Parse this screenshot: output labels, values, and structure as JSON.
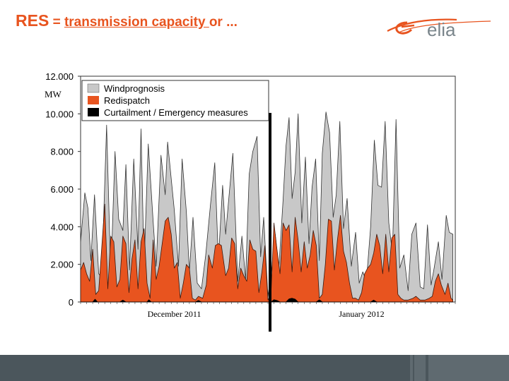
{
  "header": {
    "title_prefix": "RES",
    "title_eq": " = ",
    "title_link": "transmission capacity ",
    "title_suffix": "or ..."
  },
  "logo": {
    "text": "elia",
    "icon": "elia-logo-swoosh",
    "color": "#e8541f"
  },
  "chart_data": {
    "type": "area",
    "title": "",
    "ylabel": "MW",
    "xlabel": "",
    "ylim": [
      0,
      12000
    ],
    "yticks": [
      "0",
      "2.000",
      "4.000",
      "6.000",
      "8.000",
      "10.000",
      "12.000"
    ],
    "ytick_values": [
      0,
      2000,
      4000,
      6000,
      8000,
      10000,
      12000
    ],
    "x_groups": [
      {
        "label": "December 2011",
        "days": 31
      },
      {
        "label": "January 2012",
        "days": 31
      }
    ],
    "divider_day": 31,
    "legend": [
      {
        "label": "Windprognosis",
        "color": "#c8c8c8"
      },
      {
        "label": "Redispatch",
        "color": "#e8541f"
      },
      {
        "label": "Curtailment / Emergency measures",
        "color": "#000000"
      }
    ],
    "series": [
      {
        "name": "Windprognosis",
        "color": "#c8c8c8",
        "points": [
          [
            0,
            3200
          ],
          [
            0.7,
            5800
          ],
          [
            1.2,
            5000
          ],
          [
            1.7,
            2200
          ],
          [
            2.3,
            5700
          ],
          [
            3,
            1500
          ],
          [
            3.5,
            1300
          ],
          [
            4.3,
            9400
          ],
          [
            5,
            1400
          ],
          [
            5.7,
            8000
          ],
          [
            6.3,
            4400
          ],
          [
            7,
            3800
          ],
          [
            7.5,
            7300
          ],
          [
            8.1,
            1700
          ],
          [
            8.8,
            7600
          ],
          [
            9.5,
            2800
          ],
          [
            10,
            9200
          ],
          [
            10.5,
            1900
          ],
          [
            11.2,
            8400
          ],
          [
            12,
            4300
          ],
          [
            12.5,
            1900
          ],
          [
            13.3,
            7800
          ],
          [
            14,
            5700
          ],
          [
            14.4,
            8500
          ],
          [
            15.5,
            4900
          ],
          [
            16.2,
            1900
          ],
          [
            16.8,
            7600
          ],
          [
            17.5,
            4800
          ],
          [
            18,
            1600
          ],
          [
            18.6,
            4500
          ],
          [
            19.3,
            1000
          ],
          [
            20,
            700
          ],
          [
            20.7,
            2500
          ],
          [
            21.5,
            5200
          ],
          [
            22.2,
            7400
          ],
          [
            22.8,
            2200
          ],
          [
            23.5,
            6200
          ],
          [
            24,
            3600
          ],
          [
            24.5,
            5400
          ],
          [
            25.2,
            7900
          ],
          [
            26,
            1100
          ],
          [
            26.7,
            3500
          ],
          [
            27.3,
            1200
          ],
          [
            27.9,
            6800
          ],
          [
            28.5,
            8000
          ],
          [
            29.2,
            8800
          ],
          [
            29.8,
            2400
          ],
          [
            30.3,
            4500
          ],
          [
            31,
            300
          ],
          [
            31.6,
            1700
          ],
          [
            32.2,
            3600
          ],
          [
            32.8,
            1800
          ],
          [
            33.5,
            5400
          ],
          [
            34,
            8300
          ],
          [
            34.5,
            9800
          ],
          [
            35,
            5500
          ],
          [
            35.5,
            6900
          ],
          [
            36,
            10000
          ],
          [
            36.6,
            4200
          ],
          [
            37.2,
            7700
          ],
          [
            37.8,
            3100
          ],
          [
            38.3,
            6100
          ],
          [
            38.9,
            7600
          ],
          [
            39.5,
            2200
          ],
          [
            40,
            7900
          ],
          [
            40.6,
            10100
          ],
          [
            41.2,
            9000
          ],
          [
            41.8,
            4500
          ],
          [
            42.3,
            5700
          ],
          [
            42.9,
            9600
          ],
          [
            43.5,
            3900
          ],
          [
            44.1,
            5500
          ],
          [
            44.8,
            1900
          ],
          [
            45.5,
            3700
          ],
          [
            46.1,
            1000
          ],
          [
            46.7,
            1600
          ],
          [
            47.3,
            1100
          ],
          [
            48,
            4000
          ],
          [
            48.6,
            8600
          ],
          [
            49.2,
            6200
          ],
          [
            49.8,
            6100
          ],
          [
            50.4,
            9600
          ],
          [
            51,
            4200
          ],
          [
            51.6,
            2600
          ],
          [
            52.2,
            9700
          ],
          [
            52.8,
            1800
          ],
          [
            53.5,
            2500
          ],
          [
            54.2,
            600
          ],
          [
            54.8,
            3600
          ],
          [
            55.5,
            4200
          ],
          [
            56.2,
            800
          ],
          [
            56.8,
            700
          ],
          [
            57.4,
            4100
          ],
          [
            58,
            900
          ],
          [
            58.5,
            1800
          ],
          [
            59.2,
            3200
          ],
          [
            59.8,
            1200
          ],
          [
            60.5,
            4600
          ],
          [
            61,
            3700
          ],
          [
            61.6,
            3600
          ]
        ]
      },
      {
        "name": "Redispatch",
        "color": "#e8541f",
        "points": [
          [
            0,
            1700
          ],
          [
            0.5,
            2100
          ],
          [
            1,
            1500
          ],
          [
            1.5,
            1100
          ],
          [
            2,
            2800
          ],
          [
            2.5,
            400
          ],
          [
            3,
            600
          ],
          [
            3.5,
            2900
          ],
          [
            4,
            5200
          ],
          [
            4.5,
            700
          ],
          [
            5,
            3500
          ],
          [
            5.5,
            3200
          ],
          [
            6,
            800
          ],
          [
            6.5,
            1200
          ],
          [
            7,
            3500
          ],
          [
            7.5,
            3100
          ],
          [
            8,
            500
          ],
          [
            8.5,
            2300
          ],
          [
            9,
            3300
          ],
          [
            9.5,
            700
          ],
          [
            10,
            3200
          ],
          [
            10.5,
            3900
          ],
          [
            11,
            1000
          ],
          [
            11.5,
            200
          ],
          [
            12,
            3300
          ],
          [
            12.5,
            1200
          ],
          [
            13,
            1900
          ],
          [
            13.5,
            3100
          ],
          [
            14,
            4300
          ],
          [
            14.5,
            4500
          ],
          [
            15,
            3600
          ],
          [
            15.5,
            1800
          ],
          [
            16,
            2100
          ],
          [
            16.5,
            200
          ],
          [
            17,
            1000
          ],
          [
            17.5,
            2000
          ],
          [
            18,
            1800
          ],
          [
            18.5,
            200
          ],
          [
            19,
            100
          ],
          [
            19.5,
            300
          ],
          [
            20.2,
            200
          ],
          [
            20.8,
            900
          ],
          [
            21.2,
            2500
          ],
          [
            21.8,
            1800
          ],
          [
            22.3,
            3000
          ],
          [
            22.8,
            3100
          ],
          [
            23.3,
            3000
          ],
          [
            24,
            1400
          ],
          [
            24.5,
            1800
          ],
          [
            25,
            3400
          ],
          [
            25.5,
            3100
          ],
          [
            26,
            700
          ],
          [
            26.5,
            1800
          ],
          [
            27,
            1400
          ],
          [
            27.5,
            1100
          ],
          [
            28,
            3300
          ],
          [
            28.5,
            2800
          ],
          [
            29,
            2700
          ],
          [
            29.5,
            500
          ],
          [
            30,
            1600
          ],
          [
            30.5,
            3000
          ],
          [
            31,
            100
          ],
          [
            31.5,
            400
          ],
          [
            32,
            4200
          ],
          [
            32.5,
            2800
          ],
          [
            33,
            1500
          ],
          [
            33.5,
            4200
          ],
          [
            34,
            3800
          ],
          [
            34.5,
            4100
          ],
          [
            35,
            1600
          ],
          [
            35.5,
            4500
          ],
          [
            36,
            3300
          ],
          [
            36.5,
            1600
          ],
          [
            37,
            3200
          ],
          [
            37.5,
            1800
          ],
          [
            38,
            2500
          ],
          [
            38.5,
            3800
          ],
          [
            39,
            3000
          ],
          [
            39.5,
            200
          ],
          [
            40,
            400
          ],
          [
            40.5,
            2000
          ],
          [
            41,
            4400
          ],
          [
            41.5,
            4300
          ],
          [
            42,
            1700
          ],
          [
            42.5,
            3300
          ],
          [
            43,
            4600
          ],
          [
            43.5,
            2700
          ],
          [
            44,
            2100
          ],
          [
            44.5,
            1000
          ],
          [
            45,
            200
          ],
          [
            45.5,
            200
          ],
          [
            46,
            100
          ],
          [
            46.5,
            500
          ],
          [
            47,
            1500
          ],
          [
            47.5,
            1800
          ],
          [
            48,
            2000
          ],
          [
            48.5,
            2600
          ],
          [
            49,
            3600
          ],
          [
            49.5,
            3000
          ],
          [
            50,
            1500
          ],
          [
            50.5,
            3600
          ],
          [
            51,
            1600
          ],
          [
            51.5,
            3400
          ],
          [
            52,
            3600
          ],
          [
            52.5,
            400
          ],
          [
            53,
            200
          ],
          [
            53.5,
            100
          ],
          [
            54.2,
            100
          ],
          [
            55,
            200
          ],
          [
            55.5,
            300
          ],
          [
            56.2,
            100
          ],
          [
            57,
            100
          ],
          [
            57.7,
            200
          ],
          [
            58.2,
            300
          ],
          [
            58.7,
            1100
          ],
          [
            59.2,
            1500
          ],
          [
            59.7,
            900
          ],
          [
            60.3,
            400
          ],
          [
            60.8,
            1000
          ],
          [
            61.3,
            200
          ],
          [
            61.6,
            100
          ]
        ]
      },
      {
        "name": "Curtailment / Emergency measures",
        "color": "#000000",
        "points": [
          [
            0,
            0
          ],
          [
            2,
            0
          ],
          [
            2.4,
            150
          ],
          [
            2.8,
            0
          ],
          [
            6.5,
            0
          ],
          [
            7,
            100
          ],
          [
            7.5,
            0
          ],
          [
            11,
            0
          ],
          [
            11.3,
            120
          ],
          [
            11.7,
            0
          ],
          [
            19,
            0
          ],
          [
            19.5,
            80
          ],
          [
            20,
            0
          ],
          [
            31.5,
            0
          ],
          [
            32,
            120
          ],
          [
            32.5,
            80
          ],
          [
            33,
            0
          ],
          [
            34,
            0
          ],
          [
            34.5,
            160
          ],
          [
            35,
            200
          ],
          [
            35.5,
            150
          ],
          [
            36,
            0
          ],
          [
            39,
            0
          ],
          [
            39.5,
            120
          ],
          [
            40,
            0
          ],
          [
            48,
            0
          ],
          [
            48.5,
            100
          ],
          [
            49,
            0
          ],
          [
            61.6,
            0
          ]
        ]
      }
    ]
  }
}
